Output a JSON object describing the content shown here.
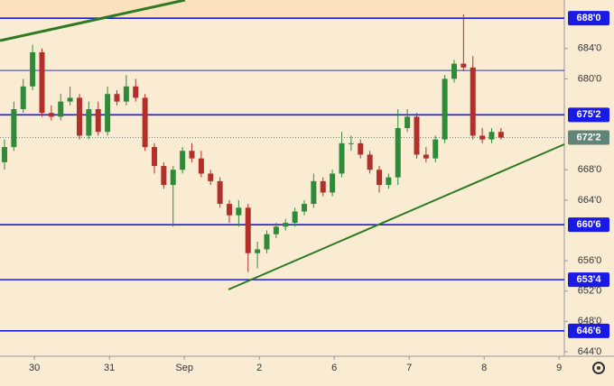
{
  "chart_data": {
    "type": "candlestick",
    "x": [
      -0.4,
      -0.275,
      -0.15,
      -0.025,
      0.1,
      0.225,
      0.35,
      0.475,
      0.6,
      0.725,
      0.85,
      0.975,
      1.1,
      1.225,
      1.35,
      1.475,
      1.6,
      1.725,
      1.85,
      1.975,
      2.1,
      2.225,
      2.35,
      2.475,
      2.6,
      2.725,
      2.85,
      2.975,
      3.1,
      3.225,
      3.35,
      3.475,
      3.6,
      3.725,
      3.85,
      3.975,
      4.1,
      4.225,
      4.35,
      4.475,
      4.6,
      4.725,
      4.85,
      4.975,
      5.1,
      5.225,
      5.35,
      5.475,
      5.6,
      5.725,
      5.85,
      5.975,
      6.1,
      6.225
    ],
    "open": [
      669,
      671,
      676,
      679,
      683.5,
      675.5,
      675,
      677,
      677.5,
      672.5,
      676,
      673,
      678,
      677,
      679,
      677.5,
      671,
      668.5,
      666,
      668,
      670.5,
      669.5,
      667.5,
      666.5,
      663.5,
      662,
      663,
      657,
      657.5,
      659.5,
      660.5,
      661,
      662.5,
      663.5,
      666.5,
      665,
      667.5,
      671.5,
      671.5,
      670,
      668,
      666,
      667,
      673.5,
      675,
      670,
      669.5,
      672,
      680,
      682,
      681.5,
      672.5,
      672,
      673
    ],
    "high": [
      672,
      677,
      680,
      684.5,
      684,
      676.5,
      678,
      679,
      678,
      677,
      677,
      679,
      678.5,
      680.5,
      680,
      678,
      671.5,
      669,
      668.5,
      671,
      671.5,
      670.5,
      668,
      667,
      664,
      664,
      663.5,
      658.5,
      660,
      661,
      661.5,
      663,
      664,
      667.5,
      667,
      668,
      673,
      672.5,
      672,
      670.5,
      668.5,
      667.5,
      676,
      676,
      675.5,
      671,
      672.5,
      680.5,
      682.5,
      688.5,
      683,
      673.5,
      673.5,
      673.5
    ],
    "low": [
      668,
      670.5,
      675.5,
      678.5,
      675,
      674.5,
      674.5,
      676.5,
      672,
      672,
      672.5,
      672.5,
      676.5,
      676.5,
      677,
      670.5,
      667.5,
      665.5,
      660.5,
      667.5,
      669,
      667,
      666,
      663,
      661,
      660.5,
      654.5,
      655,
      657,
      659,
      660,
      660.5,
      662,
      663,
      664.5,
      664.5,
      667,
      670.5,
      669.5,
      667.5,
      665,
      665.5,
      666,
      673,
      669.5,
      669,
      669,
      671.5,
      679.5,
      681,
      672,
      671.5,
      671.5,
      672
    ],
    "close": [
      671,
      676,
      679,
      683.5,
      675.5,
      675,
      677,
      677.5,
      672.5,
      676,
      673,
      678,
      677,
      679,
      677.5,
      671,
      668.5,
      666,
      668,
      670.5,
      669.5,
      667.5,
      666.5,
      663.5,
      662,
      663,
      657,
      657.5,
      659.5,
      660.5,
      661,
      662.5,
      663.5,
      666.5,
      665,
      667.5,
      671.5,
      671.5,
      670,
      668,
      666,
      667,
      673.5,
      675,
      670,
      669.5,
      672,
      680,
      682,
      681.5,
      672.5,
      672,
      673,
      672.25
    ],
    "up_color": "#2f8a3a",
    "down_color": "#b3302a",
    "xlim": [
      -0.46,
      7.07
    ],
    "ylim": [
      643.4,
      690.4
    ],
    "xticks": [
      {
        "value": 0,
        "label": "30"
      },
      {
        "value": 1,
        "label": "31"
      },
      {
        "value": 2,
        "label": "Sep"
      },
      {
        "value": 3,
        "label": "2"
      },
      {
        "value": 4,
        "label": "6"
      },
      {
        "value": 5,
        "label": "7"
      },
      {
        "value": 6,
        "label": "8"
      },
      {
        "value": 7,
        "label": "9"
      }
    ],
    "yticks": [
      {
        "value": 684,
        "label": "684'0"
      },
      {
        "value": 680,
        "label": "680'0"
      },
      {
        "value": 668,
        "label": "668'0"
      },
      {
        "value": 664,
        "label": "664'0"
      },
      {
        "value": 656,
        "label": "656'0"
      },
      {
        "value": 652,
        "label": "652'0"
      },
      {
        "value": 648,
        "label": "648'0"
      },
      {
        "value": 644,
        "label": "644'0"
      }
    ],
    "levels": [
      {
        "value": 688,
        "label": "688'0"
      },
      {
        "value": 675.25,
        "label": "675'2"
      },
      {
        "value": 660.75,
        "label": "660'6"
      },
      {
        "value": 653.5,
        "label": "653'4"
      },
      {
        "value": 646.75,
        "label": "646'6"
      }
    ],
    "unlabeled_levels": [
      681.1
    ],
    "last_price": {
      "value": 672.25,
      "label": "672'2"
    }
  }
}
